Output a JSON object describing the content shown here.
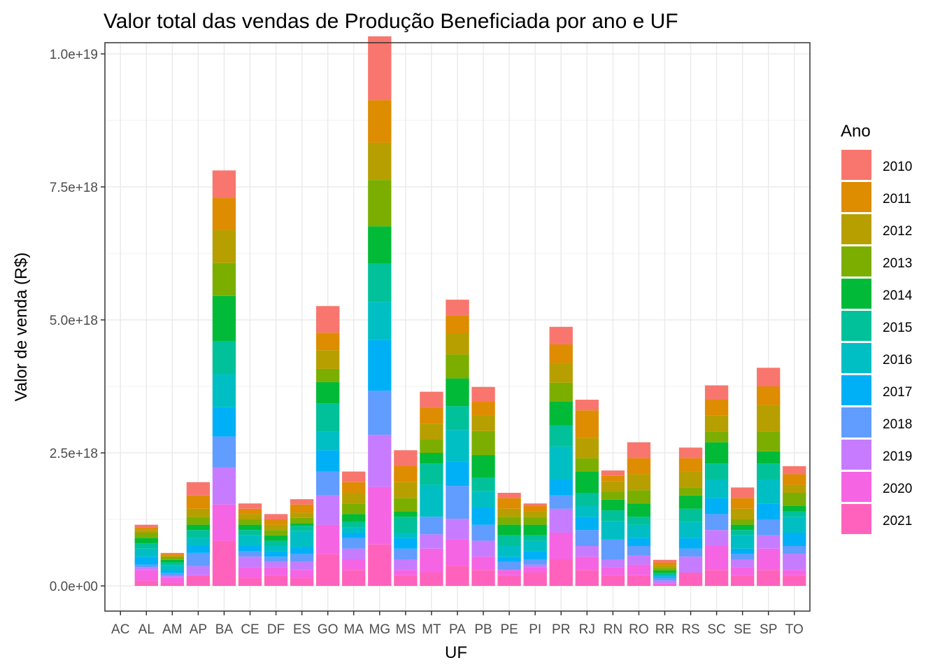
{
  "chart_data": {
    "type": "bar",
    "stacked": true,
    "title": "Valor total das vendas de Produção Beneficiada por ano e UF",
    "xlabel": "UF",
    "ylabel": "Valor de venda (R$)",
    "ylim": [
      0,
      1e+19
    ],
    "yticks": [
      0,
      2.5e+18,
      5e+18,
      7.5e+18,
      1e+19
    ],
    "ytick_labels": [
      "0.0e+00",
      "2.5e+18",
      "5.0e+18",
      "7.5e+18",
      "1.0e+19"
    ],
    "grid": true,
    "legend": {
      "title": "Ano",
      "position": "right"
    },
    "categories": [
      "AC",
      "AL",
      "AM",
      "AP",
      "BA",
      "CE",
      "DF",
      "ES",
      "GO",
      "MA",
      "MG",
      "MS",
      "MT",
      "PA",
      "PB",
      "PE",
      "PI",
      "PR",
      "RJ",
      "RN",
      "RO",
      "RR",
      "RS",
      "SC",
      "SE",
      "SP",
      "TO"
    ],
    "series": [
      {
        "name": "2021",
        "color": "#FF62BC",
        "values": [
          0,
          1e+17,
          6e+16,
          2e+17,
          8.5e+17,
          1.5e+17,
          2e+17,
          1.5e+17,
          6e+17,
          3e+17,
          7.8e+17,
          2e+17,
          2.5e+17,
          3.8e+17,
          3e+17,
          2e+17,
          2.5e+17,
          5e+17,
          3e+17,
          2e+17,
          2e+17,
          2e+16,
          2.5e+17,
          3e+17,
          2e+17,
          3e+17,
          2e+17
        ]
      },
      {
        "name": "2020",
        "color": "#F564E3",
        "values": [
          0,
          2e+17,
          1e+17,
          0,
          6.8e+17,
          2e+17,
          1.5e+17,
          1.5e+17,
          5.5e+17,
          2e+17,
          1.08e+18,
          1e+17,
          4.5e+17,
          5e+17,
          2.5e+17,
          1e+17,
          1e+17,
          5e+17,
          2.5e+17,
          1.5e+17,
          2e+17,
          3e+16,
          0,
          4.5e+17,
          1.5e+17,
          4e+17,
          1e+17
        ]
      },
      {
        "name": "2019",
        "color": "#C77CFF",
        "values": [
          0,
          5e+16,
          3e+16,
          1.7e+17,
          7e+17,
          2e+17,
          1e+17,
          1.5e+17,
          5.5e+17,
          2e+17,
          9.8e+17,
          2e+17,
          2.7e+17,
          3.8e+17,
          3e+17,
          0,
          5e+16,
          4.5e+17,
          2e+17,
          1.5e+17,
          1.7e+17,
          5e+16,
          3e+17,
          3e+17,
          1.5e+17,
          2.5e+17,
          3e+17
        ]
      },
      {
        "name": "2018",
        "color": "#619CFF",
        "values": [
          0,
          5e+16,
          5e+16,
          2.5e+17,
          5.8e+17,
          1e+17,
          1e+17,
          1.5e+17,
          4.5e+17,
          2e+17,
          8.3e+17,
          2e+17,
          3.3e+17,
          6.2e+17,
          3e+17,
          1.5e+17,
          1e+17,
          2.5e+17,
          3e+17,
          3.7e+17,
          1.8e+17,
          5e+16,
          1.5e+17,
          3e+17,
          1e+17,
          3e+17,
          1.5e+17
        ]
      },
      {
        "name": "2017",
        "color": "#00B0F6",
        "values": [
          0,
          1.5e+17,
          5e+16,
          1.3e+17,
          5.5e+17,
          1e+17,
          1e+17,
          1.3e+17,
          4e+17,
          1e+17,
          9.5e+17,
          2e+17,
          0,
          4.5e+17,
          3.3e+17,
          1e+17,
          1.5e+17,
          3e+17,
          2.5e+17,
          0,
          1.5e+17,
          3e+16,
          2e+17,
          3e+17,
          1e+17,
          3e+17,
          2.5e+17
        ]
      },
      {
        "name": "2016",
        "color": "#00BFC4",
        "values": [
          0,
          1.5e+17,
          1e+17,
          1.5e+17,
          6.2e+17,
          2e+17,
          1e+17,
          3e+17,
          3.5e+17,
          1e+17,
          7.2e+17,
          1e+17,
          6e+17,
          6e+17,
          3e+17,
          2e+17,
          2e+17,
          6.2e+17,
          2e+17,
          3.5e+17,
          2.5e+17,
          1e+16,
          3e+17,
          3.5e+17,
          2.5e+17,
          4.5e+17,
          3e+17
        ]
      },
      {
        "name": "2015",
        "color": "#00C19A",
        "values": [
          0,
          1e+17,
          5e+16,
          1.5e+17,
          6.2e+17,
          1e+17,
          1e+17,
          1e+17,
          5.3e+17,
          1e+17,
          7.2e+17,
          3e+17,
          4e+17,
          4.5e+17,
          2.5e+17,
          2e+17,
          1e+17,
          4e+17,
          2.5e+17,
          2e+17,
          1.5e+17,
          5e+16,
          2.5e+17,
          3e+17,
          1e+17,
          3e+17,
          1e+17
        ]
      },
      {
        "name": "2014",
        "color": "#00BA38",
        "values": [
          0,
          1e+17,
          5e+16,
          1e+17,
          8.5e+17,
          1e+17,
          1e+17,
          5e+16,
          4e+17,
          1.5e+17,
          7e+17,
          1e+17,
          2e+17,
          5.2e+17,
          4.3e+17,
          2e+17,
          2e+17,
          4.5e+17,
          4e+17,
          2e+17,
          2.5e+17,
          5e+16,
          2.5e+17,
          4e+17,
          1e+17,
          2.3e+17,
          1e+17
        ]
      },
      {
        "name": "2013",
        "color": "#7CAE00",
        "values": [
          0,
          1e+17,
          5e+16,
          1.5e+17,
          6.2e+17,
          1e+17,
          1e+17,
          1e+17,
          2.5e+17,
          2e+17,
          8.7e+17,
          2.5e+17,
          2.5e+17,
          4.5e+17,
          4.5e+17,
          1.5e+17,
          1.5e+17,
          3.5e+17,
          2.5e+17,
          1.5e+17,
          2.5e+17,
          5e+16,
          1.5e+17,
          2e+17,
          1e+17,
          3.7e+17,
          2.5e+17
        ]
      },
      {
        "name": "2012",
        "color": "#B79F00",
        "values": [
          0,
          5e+16,
          3e+16,
          1.5e+17,
          6.2e+17,
          1e+17,
          1e+17,
          1e+17,
          3.5e+17,
          2e+17,
          7e+17,
          3e+17,
          3e+17,
          4e+17,
          3e+17,
          1.5e+17,
          1e+17,
          3.7e+17,
          3.8e+17,
          2e+17,
          3e+17,
          5e+16,
          3e+17,
          3e+17,
          2e+17,
          5e+17,
          1.5e+17
        ]
      },
      {
        "name": "2011",
        "color": "#DE8C00",
        "values": [
          0,
          5e+16,
          3e+16,
          2.5e+17,
          6e+17,
          1e+17,
          1e+17,
          1.5e+17,
          3.3e+17,
          2e+17,
          8e+17,
          3e+17,
          3e+17,
          3.3e+17,
          2.5e+17,
          2e+17,
          1e+17,
          3.5e+17,
          5.2e+17,
          1e+17,
          3e+17,
          5e+16,
          2.5e+17,
          3e+17,
          2e+17,
          3.5e+17,
          2e+17
        ]
      },
      {
        "name": "2010",
        "color": "#F8766D",
        "values": [
          0,
          5e+16,
          2e+16,
          2.5e+17,
          5.2e+17,
          1e+17,
          1e+17,
          1e+17,
          5e+17,
          2e+17,
          1.2e+18,
          3e+17,
          3e+17,
          3e+17,
          2.8e+17,
          1e+17,
          5e+16,
          3.3e+17,
          2e+17,
          1e+17,
          3e+17,
          5e+16,
          2e+17,
          2.7e+17,
          2e+17,
          3.5e+17,
          1.5e+17
        ]
      }
    ]
  }
}
